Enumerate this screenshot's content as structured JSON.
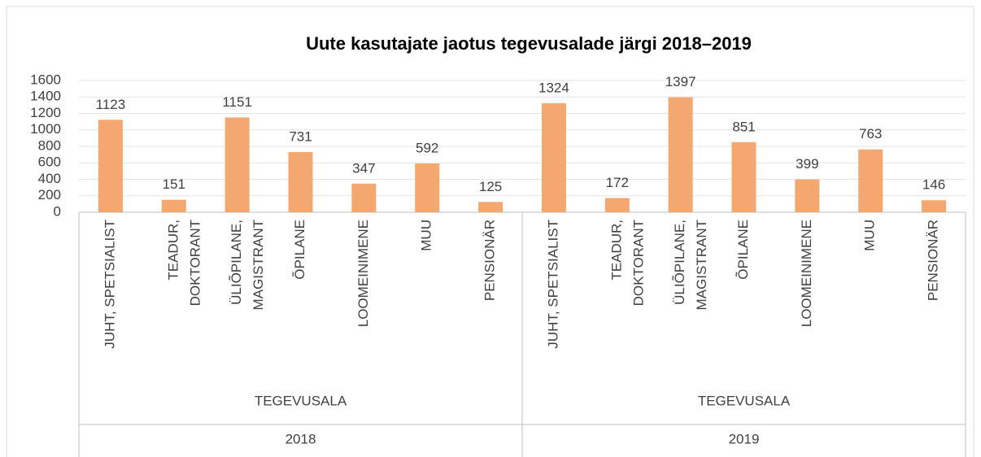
{
  "chart_data": {
    "type": "bar",
    "title": "Uute kasutajate jaotus tegevusalade järgi 2018–2019",
    "color": "#f4a76f",
    "ylim": [
      0,
      1600
    ],
    "yticks": [
      0,
      200,
      400,
      600,
      800,
      1000,
      1200,
      1400,
      1600
    ],
    "grid": true,
    "groups": [
      {
        "name": "2018",
        "subgroup": "TEGEVUSALA",
        "categories": [
          [
            "JUHT, SPETSIALIST"
          ],
          [
            "TEADUR,",
            "DOKTORANT"
          ],
          [
            "ÜLIÕPILANE,",
            "MAGISTRANT"
          ],
          [
            "ÕPILANE"
          ],
          [
            "LOOMEINIMENE"
          ],
          [
            "MUU"
          ],
          [
            "PENSIONÄR"
          ]
        ],
        "values": [
          1123,
          151,
          1151,
          731,
          347,
          592,
          125
        ]
      },
      {
        "name": "2019",
        "subgroup": "TEGEVUSALA",
        "categories": [
          [
            "JUHT, SPETSIALIST"
          ],
          [
            "TEADUR,",
            "DOKTORANT"
          ],
          [
            "ÜLIÕPILANE,",
            "MAGISTRANT"
          ],
          [
            "ÕPILANE"
          ],
          [
            "LOOMEINIMENE"
          ],
          [
            "MUU"
          ],
          [
            "PENSIONÄR"
          ]
        ],
        "values": [
          1324,
          172,
          1397,
          851,
          399,
          763,
          146
        ]
      }
    ]
  }
}
